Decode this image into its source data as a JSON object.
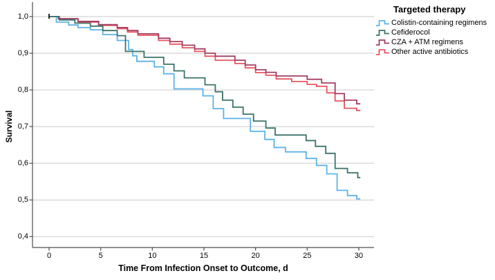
{
  "chart_data": {
    "type": "line",
    "subtype": "kaplan-meier-step",
    "title": "",
    "xlabel": "Time From Infection Onset to Outcome, d",
    "ylabel": "Survival",
    "legend_title": "Targeted therapy",
    "legend_position": "top-right-outside",
    "grid": "horizontal-only",
    "decimal_separator": ",",
    "xlim": [
      -1.6,
      31.5
    ],
    "ylim": [
      0.4,
      1.0
    ],
    "x_ticks": [
      0,
      5,
      10,
      15,
      20,
      25,
      30
    ],
    "x_tick_labels": [
      "0",
      "5",
      "10",
      "15",
      "20",
      "25",
      "30"
    ],
    "y_ticks": [
      1.0,
      0.9,
      0.8,
      0.7,
      0.6,
      0.5,
      0.4
    ],
    "y_tick_labels": [
      "1,0",
      "0,9",
      "0,8",
      "0,7",
      "0,6",
      "0,5",
      "0,4"
    ],
    "curve_end_day": 30.15,
    "start_marker": {
      "day": 0,
      "survival": 1.0,
      "color": "#222222"
    },
    "colors": {
      "gridline": "#c9c9c9",
      "axis": "#4d4d4d",
      "text": "#000000"
    },
    "series": [
      {
        "name": "Other active antibiotics",
        "color": "#e8555f",
        "points": [
          [
            0,
            1.0
          ],
          [
            0.9,
            0.994
          ],
          [
            2.8,
            0.985
          ],
          [
            4.8,
            0.976
          ],
          [
            6.6,
            0.967
          ],
          [
            7.6,
            0.958
          ],
          [
            8.6,
            0.949
          ],
          [
            10.6,
            0.935
          ],
          [
            11.7,
            0.925
          ],
          [
            12.9,
            0.915
          ],
          [
            14.1,
            0.905
          ],
          [
            15.1,
            0.892
          ],
          [
            16.1,
            0.881
          ],
          [
            18.0,
            0.872
          ],
          [
            19.0,
            0.86
          ],
          [
            20.0,
            0.847
          ],
          [
            21.0,
            0.84
          ],
          [
            22.0,
            0.83
          ],
          [
            23.5,
            0.823
          ],
          [
            25.0,
            0.815
          ],
          [
            25.9,
            0.81
          ],
          [
            26.9,
            0.792
          ],
          [
            27.7,
            0.77
          ],
          [
            28.6,
            0.75
          ],
          [
            29.8,
            0.744
          ]
        ]
      },
      {
        "name": "CZA + ATM regimens",
        "color": "#a23e62",
        "points": [
          [
            0,
            1.0
          ],
          [
            0.9,
            0.994
          ],
          [
            2.8,
            0.987
          ],
          [
            4.8,
            0.978
          ],
          [
            6.6,
            0.97
          ],
          [
            7.6,
            0.962
          ],
          [
            8.6,
            0.953
          ],
          [
            10.6,
            0.941
          ],
          [
            11.7,
            0.932
          ],
          [
            12.9,
            0.922
          ],
          [
            14.1,
            0.912
          ],
          [
            15.1,
            0.9
          ],
          [
            16.1,
            0.892
          ],
          [
            18.0,
            0.881
          ],
          [
            19.0,
            0.868
          ],
          [
            20.0,
            0.855
          ],
          [
            21.0,
            0.848
          ],
          [
            22.0,
            0.838
          ],
          [
            25.0,
            0.829
          ],
          [
            26.4,
            0.819
          ],
          [
            27.7,
            0.79
          ],
          [
            28.6,
            0.772
          ],
          [
            29.8,
            0.762
          ]
        ]
      },
      {
        "name": "Colistin-containing regimens",
        "color": "#5cb2e8",
        "points": [
          [
            0,
            1.0
          ],
          [
            0.7,
            0.985
          ],
          [
            1.9,
            0.977
          ],
          [
            2.8,
            0.97
          ],
          [
            4.0,
            0.964
          ],
          [
            5.2,
            0.951
          ],
          [
            6.6,
            0.935
          ],
          [
            7.7,
            0.91
          ],
          [
            8.1,
            0.893
          ],
          [
            8.5,
            0.878
          ],
          [
            10.2,
            0.863
          ],
          [
            11.1,
            0.844
          ],
          [
            12.1,
            0.803
          ],
          [
            14.9,
            0.784
          ],
          [
            15.9,
            0.749
          ],
          [
            16.9,
            0.722
          ],
          [
            19.5,
            0.687
          ],
          [
            20.9,
            0.665
          ],
          [
            21.8,
            0.643
          ],
          [
            22.9,
            0.631
          ],
          [
            24.9,
            0.613
          ],
          [
            25.9,
            0.594
          ],
          [
            26.9,
            0.571
          ],
          [
            27.9,
            0.526
          ],
          [
            28.9,
            0.512
          ],
          [
            29.8,
            0.503
          ]
        ]
      },
      {
        "name": "Cefiderocol",
        "color": "#3b7268",
        "points": [
          [
            0,
            1.0
          ],
          [
            1.0,
            0.991
          ],
          [
            2.5,
            0.982
          ],
          [
            4.0,
            0.974
          ],
          [
            5.2,
            0.962
          ],
          [
            6.6,
            0.948
          ],
          [
            7.4,
            0.905
          ],
          [
            9.2,
            0.889
          ],
          [
            11.1,
            0.87
          ],
          [
            12.1,
            0.852
          ],
          [
            13.1,
            0.833
          ],
          [
            15.1,
            0.814
          ],
          [
            16.1,
            0.795
          ],
          [
            16.8,
            0.772
          ],
          [
            17.8,
            0.753
          ],
          [
            18.8,
            0.734
          ],
          [
            19.8,
            0.715
          ],
          [
            21.0,
            0.696
          ],
          [
            21.9,
            0.677
          ],
          [
            24.9,
            0.662
          ],
          [
            25.8,
            0.646
          ],
          [
            26.8,
            0.627
          ],
          [
            27.7,
            0.586
          ],
          [
            28.9,
            0.574
          ],
          [
            29.9,
            0.561
          ]
        ]
      }
    ],
    "legend_order": [
      "Colistin-containing regimens",
      "Cefiderocol",
      "CZA + ATM regimens",
      "Other active antibiotics"
    ]
  }
}
